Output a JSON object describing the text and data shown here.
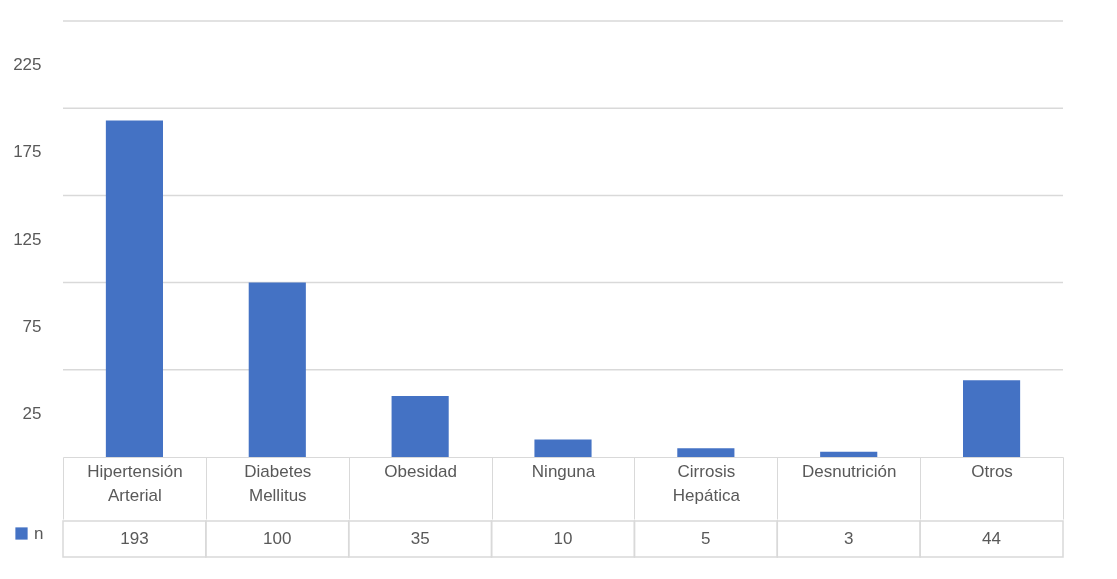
{
  "chart_data": {
    "type": "bar",
    "categories": [
      "Hipertensión Arterial",
      "Diabetes Mellitus",
      "Obesidad",
      "Ninguna",
      "Cirrosis Hepática",
      "Desnutrición",
      "Otros"
    ],
    "series": [
      {
        "name": "n",
        "color": "#4472c4",
        "values": [
          193,
          100,
          35,
          10,
          5,
          3,
          44
        ]
      }
    ],
    "ylim": [
      0,
      250
    ],
    "yticks": [
      25,
      {
        "value": 50,
        "label": null
      },
      75,
      {
        "value": 100,
        "label": null
      },
      125,
      {
        "value": 150,
        "label": null
      },
      175,
      {
        "value": 200,
        "label": null
      },
      225,
      {
        "value": 250,
        "label": null
      }
    ],
    "grid": "y",
    "legend": "bottom left",
    "data_labels": true
  }
}
